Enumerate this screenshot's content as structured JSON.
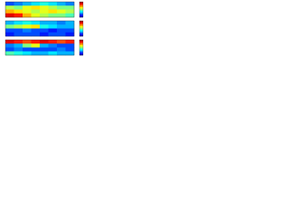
{
  "chart_data": [
    {
      "type": "heatmap",
      "colormap": "jet",
      "zlim": [
        0,
        1
      ],
      "values": [
        [
          0.2,
          0.25,
          0.3,
          0.35,
          0.4,
          0.35,
          0.3,
          0.25
        ],
        [
          0.55,
          0.5,
          0.6,
          0.65,
          0.6,
          0.55,
          0.5,
          0.5
        ],
        [
          0.7,
          0.65,
          0.6,
          0.55,
          0.6,
          0.65,
          0.6,
          0.55
        ],
        [
          0.9,
          0.85,
          0.7,
          0.6,
          0.55,
          0.5,
          0.5,
          0.45
        ]
      ]
    },
    {
      "type": "heatmap",
      "colormap": "jet",
      "zlim": [
        0,
        1
      ],
      "values": [
        [
          0.3,
          0.35,
          0.4,
          0.35,
          0.3,
          0.3,
          0.25,
          0.3
        ],
        [
          0.5,
          0.55,
          0.6,
          0.65,
          0.4,
          0.35,
          0.3,
          0.3
        ],
        [
          0.2,
          0.2,
          0.25,
          0.2,
          0.2,
          0.15,
          0.2,
          0.2
        ],
        [
          0.15,
          0.2,
          0.2,
          0.2,
          0.15,
          0.2,
          0.2,
          0.15
        ]
      ]
    },
    {
      "type": "heatmap",
      "colormap": "jet",
      "zlim": [
        0,
        1
      ],
      "values": [
        [
          0.9,
          0.85,
          0.8,
          0.85,
          0.9,
          0.85,
          0.8,
          0.85
        ],
        [
          0.25,
          0.3,
          0.5,
          0.6,
          0.3,
          0.25,
          0.2,
          0.2
        ],
        [
          0.2,
          0.25,
          0.2,
          0.2,
          0.2,
          0.2,
          0.25,
          0.2
        ],
        [
          0.45,
          0.4,
          0.35,
          0.3,
          0.3,
          0.35,
          0.3,
          0.3
        ]
      ]
    }
  ]
}
